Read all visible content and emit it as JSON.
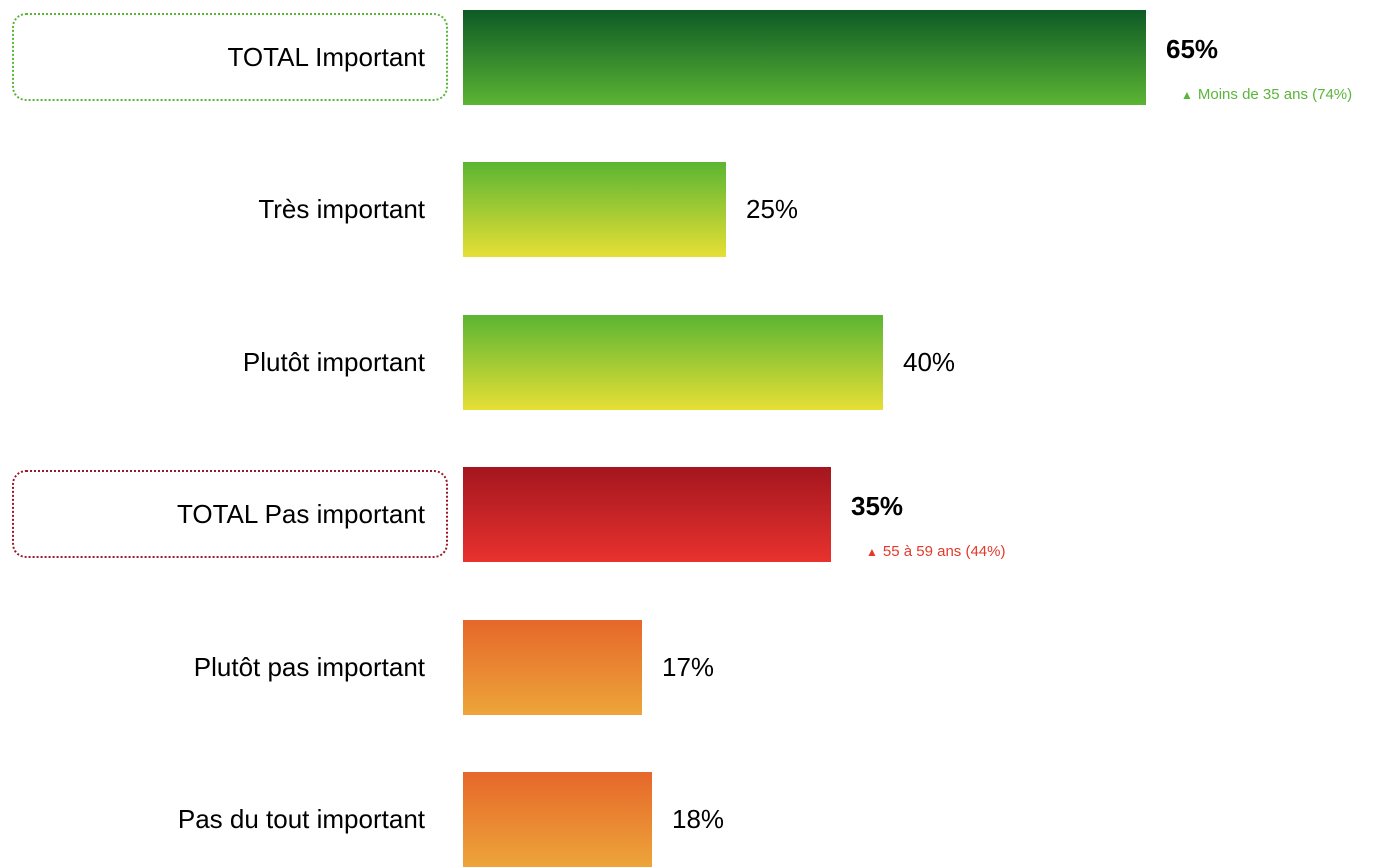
{
  "chart_data": {
    "type": "bar",
    "orientation": "horizontal",
    "xlim": [
      0,
      100
    ],
    "bars": [
      {
        "label": "TOTAL Important",
        "value": 65,
        "value_label": "65%",
        "emphasis": true,
        "framed": true,
        "frame_color": "#5bb53a",
        "gradient": [
          "#0d5a26",
          "#5bb533"
        ],
        "note": "Moins de 35 ans (74%)",
        "note_color": "#5bb53a"
      },
      {
        "label": "Très important",
        "value": 25,
        "value_label": "25%",
        "emphasis": false,
        "framed": false,
        "gradient": [
          "#5bb533",
          "#e6df35"
        ]
      },
      {
        "label": "Plutôt important",
        "value": 40,
        "value_label": "40%",
        "emphasis": false,
        "framed": false,
        "gradient": [
          "#5bb533",
          "#e6df35"
        ]
      },
      {
        "label": "TOTAL Pas important",
        "value": 35,
        "value_label": "35%",
        "emphasis": true,
        "framed": true,
        "frame_color": "#9b1a2a",
        "gradient": [
          "#a3161e",
          "#e8322e"
        ],
        "note": "55 à 59 ans (44%)",
        "note_color": "#e33a2c"
      },
      {
        "label": "Plutôt pas important",
        "value": 17,
        "value_label": "17%",
        "emphasis": false,
        "framed": false,
        "gradient": [
          "#e6672a",
          "#eda53a"
        ]
      },
      {
        "label": "Pas du tout important",
        "value": 18,
        "value_label": "18%",
        "emphasis": false,
        "framed": false,
        "gradient": [
          "#e6672a",
          "#eda53a"
        ]
      }
    ]
  }
}
